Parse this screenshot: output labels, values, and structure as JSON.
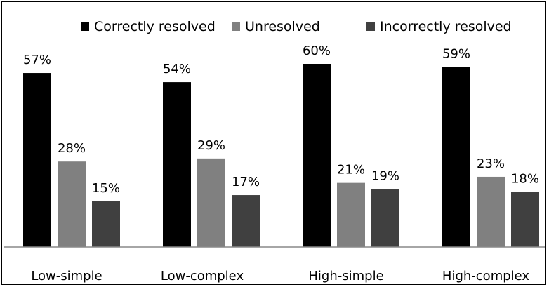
{
  "chart_data": {
    "type": "bar",
    "categories": [
      "Low-simple",
      "Low-complex",
      "High-simple",
      "High-complex"
    ],
    "series": [
      {
        "name": "Correctly resolved",
        "values": [
          57,
          54,
          60,
          59
        ],
        "labels": [
          "57%",
          "54%",
          "60%",
          "59%"
        ],
        "color": "#000000"
      },
      {
        "name": "Unresolved",
        "values": [
          28,
          29,
          21,
          23
        ],
        "labels": [
          "28%",
          "29%",
          "21%",
          "23%"
        ],
        "color": "#808080"
      },
      {
        "name": "Incorrectly resolved",
        "values": [
          15,
          17,
          19,
          18
        ],
        "labels": [
          "15%",
          "17%",
          "19%",
          "18%"
        ],
        "color": "#404040"
      }
    ],
    "title": "",
    "xlabel": "",
    "ylabel": "",
    "ylim": [
      0,
      80
    ],
    "unit": "%",
    "grid": false,
    "legend": "top"
  }
}
